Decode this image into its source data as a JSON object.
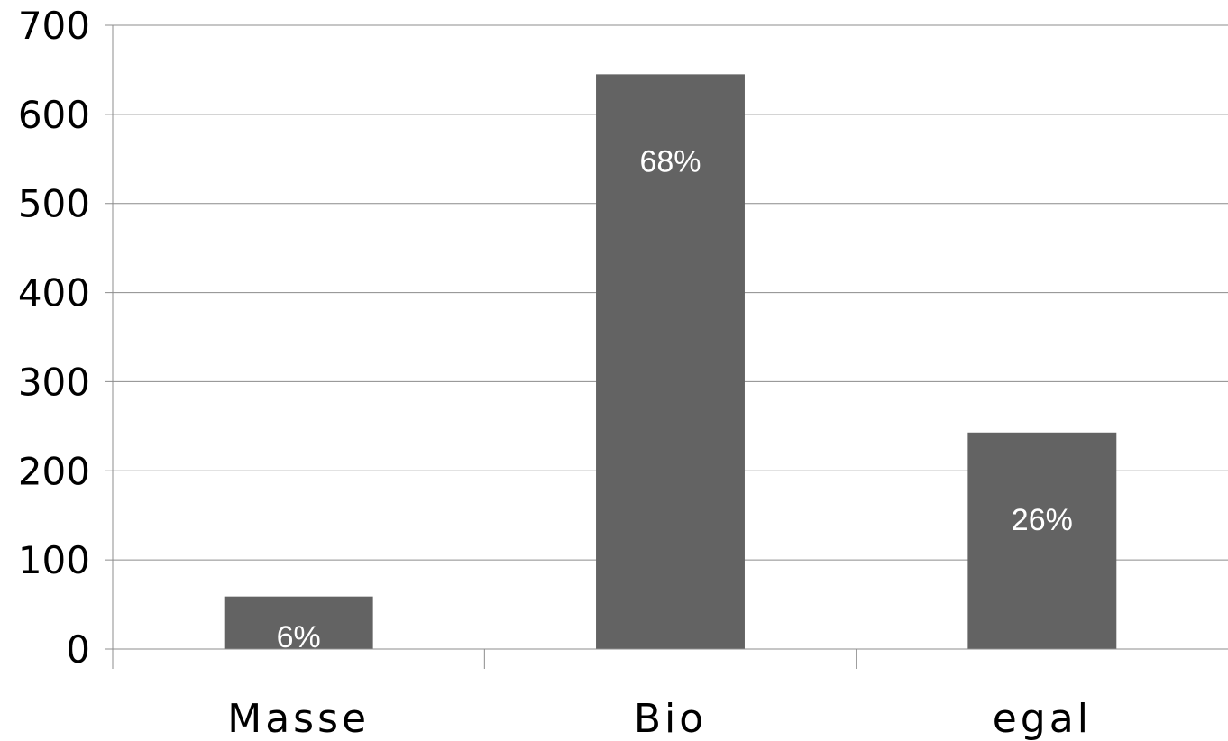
{
  "chart_data": {
    "type": "bar",
    "title": "",
    "xlabel": "",
    "ylabel": "",
    "categories": [
      "Masse",
      "Bio",
      "egal"
    ],
    "values": [
      59,
      645,
      243
    ],
    "data_labels": [
      "6%",
      "68%",
      "26%"
    ],
    "ylim": [
      0,
      700
    ],
    "yticks": [
      0,
      100,
      200,
      300,
      400,
      500,
      600,
      700
    ],
    "grid": true,
    "legend": "none",
    "bar_color": "#636363",
    "label_color": "#ffffff"
  }
}
